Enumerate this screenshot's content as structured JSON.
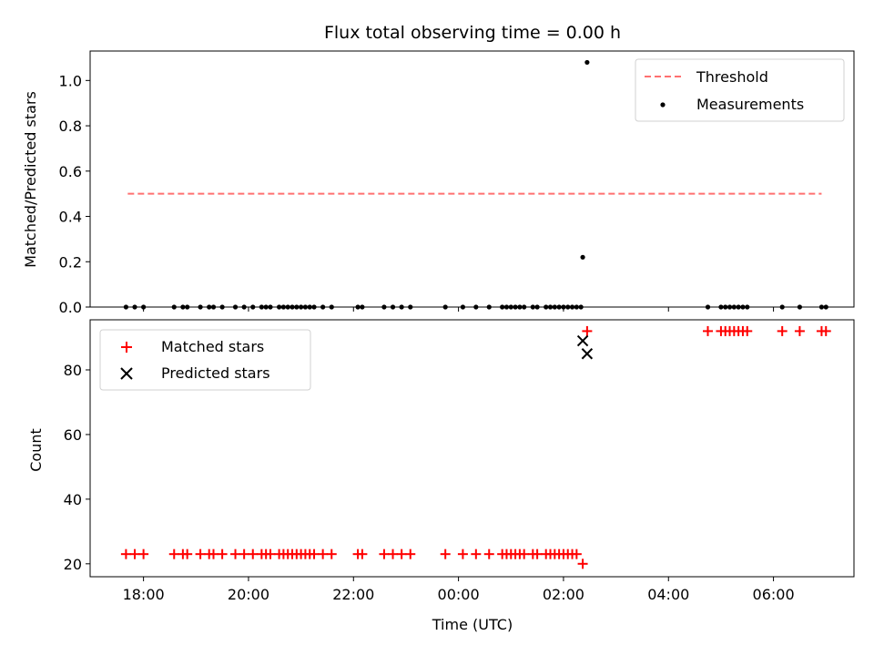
{
  "chart_data": [
    {
      "type": "scatter",
      "title": "Flux total observing time = 0.00 h",
      "xlabel": "",
      "ylabel": "Matched/Predicted stars",
      "ylim": [
        0,
        1.13
      ],
      "yticks": [
        "0.0",
        "0.2",
        "0.4",
        "0.6",
        "0.8",
        "1.0"
      ],
      "xlim": [
        "16:59",
        "07:32"
      ],
      "threshold": {
        "name": "Threshold",
        "value": 0.5,
        "x_start": "17:42",
        "x_end": "06:55",
        "color": "#ff7070",
        "style": "dashed"
      },
      "series": [
        {
          "name": "Measurements",
          "color": "#000000",
          "marker": "dot",
          "points": [
            [
              "17:40",
              0
            ],
            [
              "17:50",
              0
            ],
            [
              "18:00",
              0
            ],
            [
              "18:35",
              0
            ],
            [
              "18:45",
              0
            ],
            [
              "18:50",
              0
            ],
            [
              "19:05",
              0
            ],
            [
              "19:15",
              0
            ],
            [
              "19:20",
              0
            ],
            [
              "19:30",
              0
            ],
            [
              "19:45",
              0
            ],
            [
              "19:55",
              0
            ],
            [
              "20:05",
              0
            ],
            [
              "20:15",
              0
            ],
            [
              "20:20",
              0
            ],
            [
              "20:25",
              0
            ],
            [
              "20:35",
              0
            ],
            [
              "20:40",
              0
            ],
            [
              "20:45",
              0
            ],
            [
              "20:50",
              0
            ],
            [
              "20:55",
              0
            ],
            [
              "21:00",
              0
            ],
            [
              "21:05",
              0
            ],
            [
              "21:10",
              0
            ],
            [
              "21:15",
              0
            ],
            [
              "21:25",
              0
            ],
            [
              "21:35",
              0
            ],
            [
              "22:05",
              0
            ],
            [
              "22:10",
              0
            ],
            [
              "22:35",
              0
            ],
            [
              "22:45",
              0
            ],
            [
              "22:55",
              0
            ],
            [
              "23:05",
              0
            ],
            [
              "23:45",
              0
            ],
            [
              "00:05",
              0
            ],
            [
              "00:20",
              0
            ],
            [
              "00:35",
              0
            ],
            [
              "00:50",
              0
            ],
            [
              "00:55",
              0
            ],
            [
              "01:00",
              0
            ],
            [
              "01:05",
              0
            ],
            [
              "01:10",
              0
            ],
            [
              "01:15",
              0
            ],
            [
              "01:25",
              0
            ],
            [
              "01:30",
              0
            ],
            [
              "01:40",
              0
            ],
            [
              "01:45",
              0
            ],
            [
              "01:50",
              0
            ],
            [
              "01:55",
              0
            ],
            [
              "02:00",
              0
            ],
            [
              "02:05",
              0
            ],
            [
              "02:10",
              0
            ],
            [
              "02:15",
              0
            ],
            [
              "02:20",
              0
            ],
            [
              "02:22",
              0.22
            ],
            [
              "02:27",
              1.08
            ],
            [
              "04:45",
              0
            ],
            [
              "05:00",
              0
            ],
            [
              "05:05",
              0
            ],
            [
              "05:10",
              0
            ],
            [
              "05:15",
              0
            ],
            [
              "05:20",
              0
            ],
            [
              "05:25",
              0
            ],
            [
              "05:30",
              0
            ],
            [
              "06:10",
              0
            ],
            [
              "06:30",
              0
            ],
            [
              "06:55",
              0
            ],
            [
              "07:00",
              0
            ]
          ]
        }
      ]
    },
    {
      "type": "scatter",
      "title": "",
      "xlabel": "Time (UTC)",
      "ylabel": "Count",
      "ylim": [
        16,
        95.5
      ],
      "yticks": [
        "20",
        "40",
        "60",
        "80"
      ],
      "xlim": [
        "16:59",
        "07:32"
      ],
      "xticks": [
        "18:00",
        "20:00",
        "22:00",
        "00:00",
        "02:00",
        "04:00",
        "06:00"
      ],
      "series": [
        {
          "name": "Matched stars",
          "color": "#ff0000",
          "marker": "plus",
          "points": [
            [
              "17:40",
              23
            ],
            [
              "17:50",
              23
            ],
            [
              "18:00",
              23
            ],
            [
              "18:35",
              23
            ],
            [
              "18:45",
              23
            ],
            [
              "18:50",
              23
            ],
            [
              "19:05",
              23
            ],
            [
              "19:15",
              23
            ],
            [
              "19:20",
              23
            ],
            [
              "19:30",
              23
            ],
            [
              "19:45",
              23
            ],
            [
              "19:55",
              23
            ],
            [
              "20:05",
              23
            ],
            [
              "20:15",
              23
            ],
            [
              "20:20",
              23
            ],
            [
              "20:25",
              23
            ],
            [
              "20:35",
              23
            ],
            [
              "20:40",
              23
            ],
            [
              "20:45",
              23
            ],
            [
              "20:50",
              23
            ],
            [
              "20:55",
              23
            ],
            [
              "21:00",
              23
            ],
            [
              "21:05",
              23
            ],
            [
              "21:10",
              23
            ],
            [
              "21:15",
              23
            ],
            [
              "21:25",
              23
            ],
            [
              "21:35",
              23
            ],
            [
              "22:05",
              23
            ],
            [
              "22:10",
              23
            ],
            [
              "22:35",
              23
            ],
            [
              "22:45",
              23
            ],
            [
              "22:55",
              23
            ],
            [
              "23:05",
              23
            ],
            [
              "23:45",
              23
            ],
            [
              "00:05",
              23
            ],
            [
              "00:20",
              23
            ],
            [
              "00:35",
              23
            ],
            [
              "00:50",
              23
            ],
            [
              "00:55",
              23
            ],
            [
              "01:00",
              23
            ],
            [
              "01:05",
              23
            ],
            [
              "01:10",
              23
            ],
            [
              "01:15",
              23
            ],
            [
              "01:25",
              23
            ],
            [
              "01:30",
              23
            ],
            [
              "01:40",
              23
            ],
            [
              "01:45",
              23
            ],
            [
              "01:50",
              23
            ],
            [
              "01:55",
              23
            ],
            [
              "02:00",
              23
            ],
            [
              "02:05",
              23
            ],
            [
              "02:10",
              23
            ],
            [
              "02:15",
              23
            ],
            [
              "02:22",
              20
            ],
            [
              "02:27",
              92
            ],
            [
              "04:45",
              92
            ],
            [
              "05:00",
              92
            ],
            [
              "05:05",
              92
            ],
            [
              "05:10",
              92
            ],
            [
              "05:15",
              92
            ],
            [
              "05:20",
              92
            ],
            [
              "05:25",
              92
            ],
            [
              "05:30",
              92
            ],
            [
              "06:10",
              92
            ],
            [
              "06:30",
              92
            ],
            [
              "06:55",
              92
            ],
            [
              "07:00",
              92
            ]
          ]
        },
        {
          "name": "Predicted stars",
          "color": "#000000",
          "marker": "x",
          "points": [
            [
              "02:22",
              89
            ],
            [
              "02:27",
              85
            ]
          ]
        }
      ]
    }
  ]
}
